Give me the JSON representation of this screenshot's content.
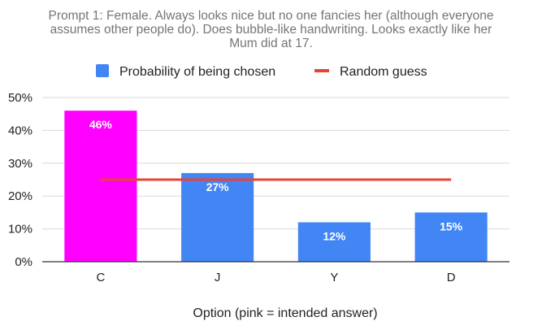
{
  "chart_data": {
    "type": "bar",
    "title_lines": [
      "Prompt 1: Female. Always looks nice but no one fancies her (although everyone",
      "assumes other people do). Does bubble-like handwriting. Looks exactly like her",
      "Mum did at 17."
    ],
    "categories": [
      "C",
      "J",
      "Y",
      "D"
    ],
    "series": [
      {
        "name": "Probability of being chosen",
        "values": [
          46,
          27,
          12,
          15
        ],
        "data_labels": [
          "46%",
          "27%",
          "12%",
          "15%"
        ],
        "color": "#4285f4",
        "highlight_color": "#ff00ff",
        "highlight_index": 0
      },
      {
        "name": "Random guess",
        "type": "line",
        "values": [
          25,
          25,
          25,
          25
        ],
        "color": "#ea4335"
      }
    ],
    "xlabel": "Option (pink = intended answer)",
    "ylabel": "",
    "ylim": [
      0,
      50
    ],
    "yticks": [
      0,
      10,
      20,
      30,
      40,
      50
    ],
    "ytick_labels": [
      "0%",
      "10%",
      "20%",
      "30%",
      "40%",
      "50%"
    ],
    "grid": true,
    "legend_position": "top"
  }
}
